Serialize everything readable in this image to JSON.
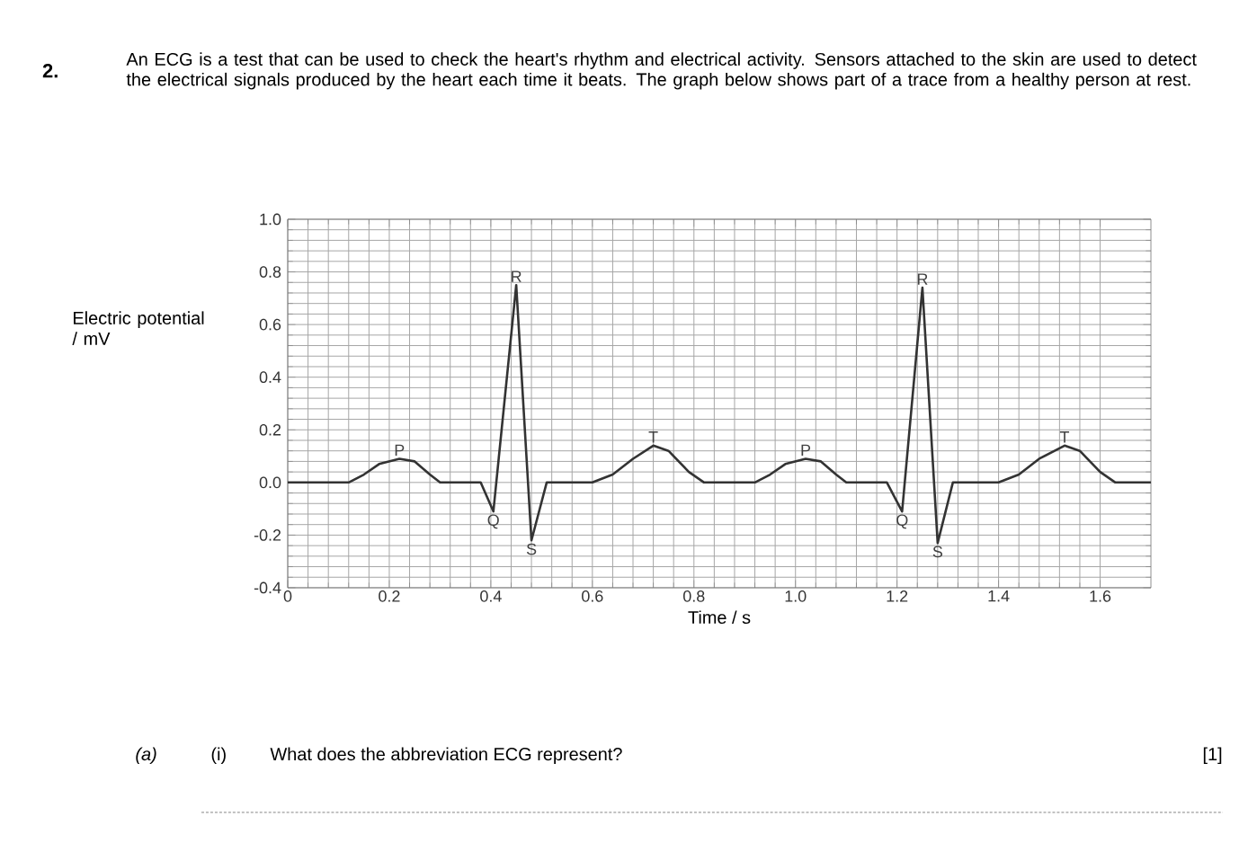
{
  "chart_data": {
    "type": "line",
    "xlabel": "Time / s",
    "ylabel": "Electric potential / mV",
    "x": [
      0,
      0.12,
      0.15,
      0.18,
      0.22,
      0.25,
      0.28,
      0.3,
      0.38,
      0.405,
      0.45,
      0.48,
      0.51,
      0.6,
      0.64,
      0.68,
      0.72,
      0.75,
      0.79,
      0.82,
      0.92,
      0.95,
      0.98,
      1.02,
      1.05,
      1.08,
      1.1,
      1.18,
      1.21,
      1.25,
      1.28,
      1.31,
      1.4,
      1.44,
      1.48,
      1.53,
      1.56,
      1.6,
      1.63,
      1.7
    ],
    "values": [
      0,
      0,
      0.03,
      0.07,
      0.09,
      0.08,
      0.03,
      0,
      0,
      -0.11,
      0.75,
      -0.22,
      0,
      0,
      0.03,
      0.09,
      0.14,
      0.12,
      0.04,
      0,
      0,
      0.03,
      0.07,
      0.09,
      0.08,
      0.03,
      0,
      0,
      -0.11,
      0.74,
      -0.23,
      0,
      0,
      0.03,
      0.09,
      0.14,
      0.12,
      0.04,
      0,
      0
    ],
    "color": "#333333",
    "xlim": [
      0,
      1.7
    ],
    "ylim": [
      -0.4,
      1.0
    ],
    "xticks": [
      {
        "value": 0,
        "label": "0"
      },
      0.2,
      0.4,
      0.6,
      0.8,
      {
        "value": 1.0,
        "label": "1.0"
      },
      1.2,
      1.4,
      1.6
    ],
    "yticks": [
      -0.4,
      -0.2,
      {
        "value": 0,
        "label": "0.0"
      },
      0.2,
      0.4,
      0.6,
      0.8,
      {
        "value": 1.0,
        "label": "1.0"
      }
    ],
    "grid": true,
    "annotations": [
      {
        "text": "P",
        "x": 0.22,
        "y": 0.09
      },
      {
        "text": "Q",
        "x": 0.405,
        "y": -0.11
      },
      {
        "text": "R",
        "x": 0.45,
        "y": 0.75
      },
      {
        "text": "S",
        "x": 0.48,
        "y": -0.22
      },
      {
        "text": "T",
        "x": 0.72,
        "y": 0.14
      },
      {
        "text": "P",
        "x": 1.02,
        "y": 0.09
      },
      {
        "text": "Q",
        "x": 1.21,
        "y": -0.11
      },
      {
        "text": "R",
        "x": 1.25,
        "y": 0.74
      },
      {
        "text": "S",
        "x": 1.28,
        "y": -0.23
      },
      {
        "text": "T",
        "x": 1.53,
        "y": 0.14
      },
      "2.",
      "An ECG is a test that can be used to check the heart's rhythm and electrical activity. Sensors attached to the skin are used to detect the electrical signals produced by the heart each time it beats. The graph below shows part of a trace from a healthy person at rest.",
      "(a)",
      "(i)",
      "What does the abbreviation ECG represent?",
      "[1]"
    ]
  }
}
